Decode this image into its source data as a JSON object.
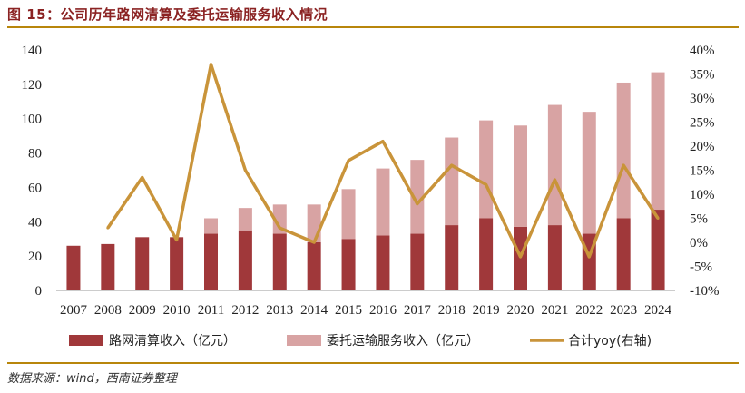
{
  "header": {
    "title": "图 15：公司历年路网清算及委托运输服务收入情况"
  },
  "footer": {
    "source": "数据来源：wind，西南证券整理"
  },
  "colors": {
    "accent_title": "#8b2323",
    "rule": "#b8860b",
    "series_toll": "#a0383a",
    "series_service": "#d8a3a3",
    "series_yoy": "#c9943a"
  },
  "chart_data": {
    "type": "bar",
    "stacked": true,
    "categories": [
      "2007",
      "2008",
      "2009",
      "2010",
      "2011",
      "2012",
      "2013",
      "2014",
      "2015",
      "2016",
      "2017",
      "2018",
      "2019",
      "2020",
      "2021",
      "2022",
      "2023",
      "2024"
    ],
    "series": [
      {
        "name": "路网清算收入（亿元）",
        "axis": "left",
        "type": "bar",
        "values": [
          26,
          27,
          31,
          31,
          33,
          35,
          33,
          28,
          30,
          32,
          33,
          38,
          42,
          37,
          38,
          33,
          42,
          47
        ]
      },
      {
        "name": "委托运输服务收入（亿元）",
        "axis": "left",
        "type": "bar",
        "values": [
          0,
          0,
          0,
          0,
          9,
          13,
          17,
          22,
          29,
          39,
          43,
          51,
          57,
          59,
          70,
          71,
          79,
          80
        ]
      },
      {
        "name": "合计yoy(右轴)",
        "axis": "right",
        "type": "line",
        "unit": "%",
        "values": [
          null,
          3,
          13.5,
          0.5,
          37,
          15,
          3,
          0,
          17,
          21,
          8,
          16,
          12,
          -3,
          13,
          -3,
          16,
          5
        ]
      }
    ],
    "ylim_left": [
      0,
      140
    ],
    "yticks_left": [
      "0",
      "20",
      "40",
      "60",
      "80",
      "100",
      "120",
      "140"
    ],
    "ylim_right": [
      -10,
      40
    ],
    "yticks_right": [
      "-10%",
      "-5%",
      "0%",
      "5%",
      "10%",
      "15%",
      "20%",
      "25%",
      "30%",
      "35%",
      "40%"
    ],
    "grid": false,
    "legend_position": "bottom"
  }
}
